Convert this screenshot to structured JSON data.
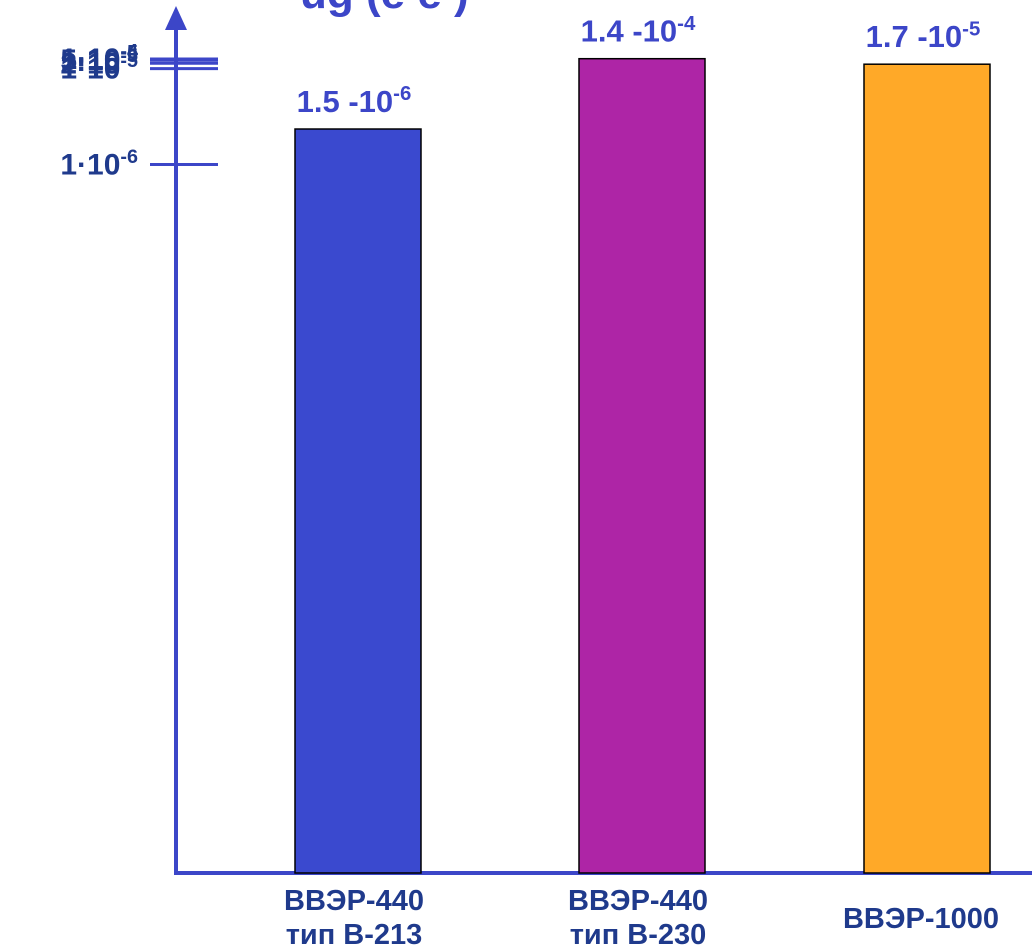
{
  "header_fragment": "ug (e e    )",
  "chart_data": {
    "type": "bar",
    "title": "",
    "xlabel": "",
    "ylabel": "",
    "scale": "reciprocal",
    "y_ticks": [
      {
        "value": 1e-06,
        "mantissa": "1",
        "sep": "·10",
        "exp": "-6"
      },
      {
        "value": 1e-05,
        "mantissa": "1",
        "sep": "·10",
        "exp": "-5"
      },
      {
        "value": 2e-05,
        "mantissa": "2",
        "sep": "·10",
        "exp": "-5"
      },
      {
        "value": 5e-05,
        "mantissa": "5",
        "sep": "·10",
        "exp": "-5"
      },
      {
        "value": 0.0001,
        "mantissa": "1",
        "sep": "·10",
        "exp": "-4"
      }
    ],
    "categories": [
      {
        "line1": "ВВЭР-440",
        "line2": "тип В-213"
      },
      {
        "line1": "ВВЭР-440",
        "line2": "тип В-230"
      },
      {
        "line1": "ВВЭР-1000",
        "line2": ""
      }
    ],
    "values": [
      1.5e-06,
      0.00014,
      1.7e-05
    ],
    "value_labels": [
      {
        "mantissa": "1.5",
        "sep": " -10",
        "exp": "-6"
      },
      {
        "mantissa": "1.4",
        "sep": " -10",
        "exp": "-4"
      },
      {
        "mantissa": "1.7",
        "sep": " -10",
        "exp": "-5"
      }
    ],
    "colors": [
      "#3a49cf",
      "#ae25a6",
      "#ffa928"
    ],
    "axis_color": "#3c46c8",
    "grid": false,
    "legend": "none"
  }
}
